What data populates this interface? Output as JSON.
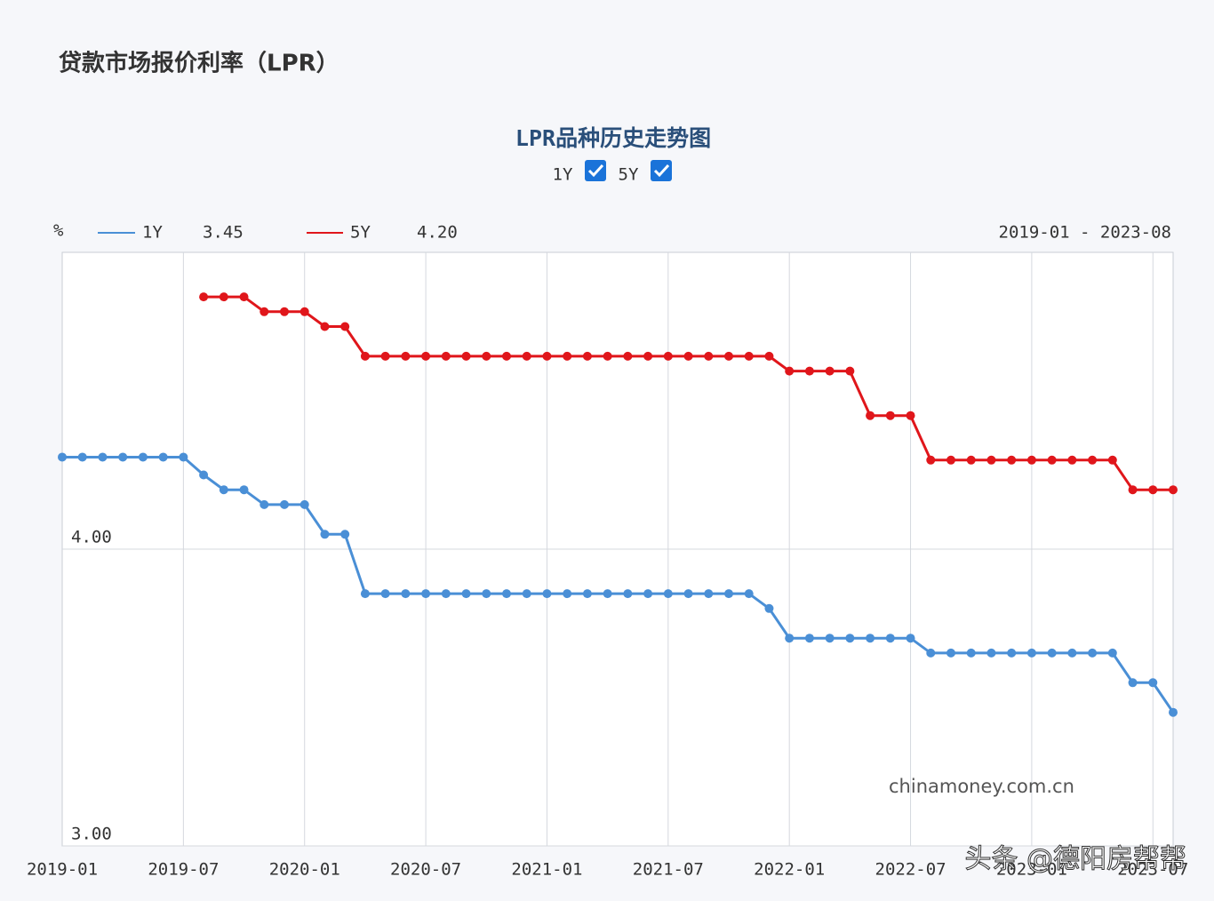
{
  "header": {
    "title": "贷款市场报价利率（LPR）"
  },
  "controls": {
    "checkbox_1": "1Y",
    "checkbox_2": "5Y"
  },
  "legend_info": {
    "unit": "%",
    "value_1": "3.45",
    "value_2": "4.20",
    "range": "2019-01  -  2023-08"
  },
  "watermark": "chinamoney.com.cn",
  "overlay": "头条 @德阳房帮帮",
  "chart_data": {
    "type": "line",
    "title": "LPR品种历史走势图",
    "categories": [
      "2019-01",
      null,
      null,
      null,
      null,
      null,
      "2019-07",
      null,
      null,
      null,
      null,
      null,
      "2020-01",
      null,
      null,
      null,
      null,
      null,
      "2020-07",
      null,
      null,
      null,
      null,
      null,
      "2021-01",
      null,
      null,
      null,
      null,
      null,
      "2021-07",
      null,
      null,
      null,
      null,
      null,
      "2022-01",
      null,
      null,
      null,
      null,
      null,
      "2022-07",
      null,
      null,
      null,
      null,
      null,
      "2023-01",
      null,
      null,
      null,
      null,
      null,
      "2023-07",
      null
    ],
    "series": [
      {
        "name": "1Y",
        "color": "#4a8fd6",
        "values": [
          4.31,
          4.31,
          4.31,
          4.31,
          4.31,
          4.31,
          4.31,
          4.25,
          4.2,
          4.2,
          4.15,
          4.15,
          4.15,
          4.05,
          4.05,
          3.85,
          3.85,
          3.85,
          3.85,
          3.85,
          3.85,
          3.85,
          3.85,
          3.85,
          3.85,
          3.85,
          3.85,
          3.85,
          3.85,
          3.85,
          3.85,
          3.85,
          3.85,
          3.85,
          3.85,
          3.8,
          3.7,
          3.7,
          3.7,
          3.7,
          3.7,
          3.7,
          3.7,
          3.65,
          3.65,
          3.65,
          3.65,
          3.65,
          3.65,
          3.65,
          3.65,
          3.65,
          3.65,
          3.55,
          3.55,
          3.45
        ]
      },
      {
        "name": "5Y",
        "color": "#e0161b",
        "values": [
          null,
          null,
          null,
          null,
          null,
          null,
          null,
          4.85,
          4.85,
          4.85,
          4.8,
          4.8,
          4.8,
          4.75,
          4.75,
          4.65,
          4.65,
          4.65,
          4.65,
          4.65,
          4.65,
          4.65,
          4.65,
          4.65,
          4.65,
          4.65,
          4.65,
          4.65,
          4.65,
          4.65,
          4.65,
          4.65,
          4.65,
          4.65,
          4.65,
          4.65,
          4.6,
          4.6,
          4.6,
          4.6,
          4.45,
          4.45,
          4.45,
          4.3,
          4.3,
          4.3,
          4.3,
          4.3,
          4.3,
          4.3,
          4.3,
          4.3,
          4.3,
          4.2,
          4.2,
          4.2
        ]
      }
    ],
    "ylim": [
      3,
      5
    ],
    "yticks": [
      {
        "value": 3,
        "label": "3.00"
      },
      {
        "value": 4,
        "label": "4.00"
      }
    ],
    "grid": true
  }
}
